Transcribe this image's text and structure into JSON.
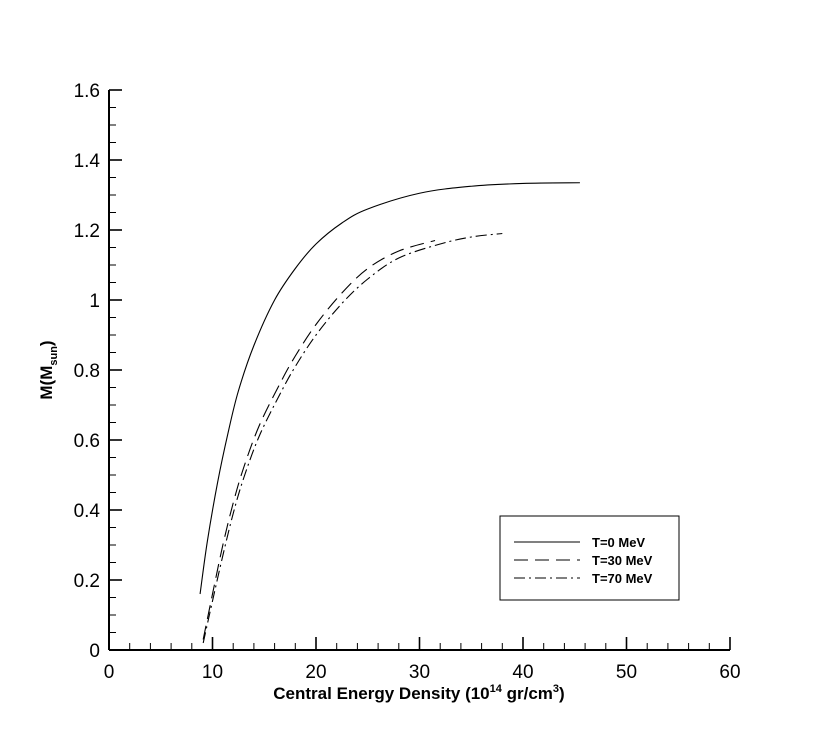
{
  "chart_data": {
    "type": "line",
    "xlabel": "Central Energy Density (10",
    "xlabel_exp": "14",
    "xlabel_mid": " gr/cm",
    "xlabel_exp2": "3",
    "xlabel_end": ")",
    "ylabel": "M(M",
    "ylabel_sub": "sun",
    "ylabel_end": ")",
    "xlim": [
      0,
      60
    ],
    "ylim": [
      0,
      1.6
    ],
    "xticks": [
      0,
      10,
      20,
      30,
      40,
      50,
      60
    ],
    "xtick_labels": [
      "0",
      "10",
      "20",
      "30",
      "40",
      "50",
      "60"
    ],
    "yticks": [
      0,
      0.2,
      0.4,
      0.6,
      0.8,
      1.0,
      1.2,
      1.4,
      1.6
    ],
    "ytick_labels": [
      "0",
      "0.2",
      "0.4",
      "0.6",
      "0.8",
      "1",
      "1.2",
      "1.4",
      "1.6"
    ],
    "legend_position": "lower-right",
    "series": [
      {
        "name": "T=0 MeV",
        "style": "solid",
        "x": [
          8.8,
          9.5,
          10.5,
          11.5,
          12.5,
          14,
          16,
          18,
          20,
          22.5,
          25,
          30,
          35,
          40,
          45.5
        ],
        "y": [
          0.16,
          0.31,
          0.48,
          0.62,
          0.74,
          0.87,
          1.0,
          1.09,
          1.16,
          1.22,
          1.26,
          1.305,
          1.325,
          1.333,
          1.335
        ]
      },
      {
        "name": "T=30 MeV",
        "style": "dashed",
        "x": [
          9.1,
          10,
          11,
          12,
          13,
          14.5,
          16.5,
          18,
          20,
          22.5,
          25,
          28,
          31.5
        ],
        "y": [
          0.03,
          0.16,
          0.3,
          0.42,
          0.52,
          0.64,
          0.76,
          0.84,
          0.93,
          1.02,
          1.09,
          1.14,
          1.17
        ]
      },
      {
        "name": "T=70 MeV",
        "style": "dash-dot",
        "x": [
          9.1,
          10,
          11,
          12,
          13,
          14.5,
          16.5,
          18,
          20,
          22.5,
          25,
          28,
          32,
          35,
          38
        ],
        "y": [
          0.02,
          0.14,
          0.27,
          0.39,
          0.49,
          0.61,
          0.73,
          0.81,
          0.9,
          0.99,
          1.06,
          1.12,
          1.16,
          1.18,
          1.19
        ]
      }
    ]
  }
}
